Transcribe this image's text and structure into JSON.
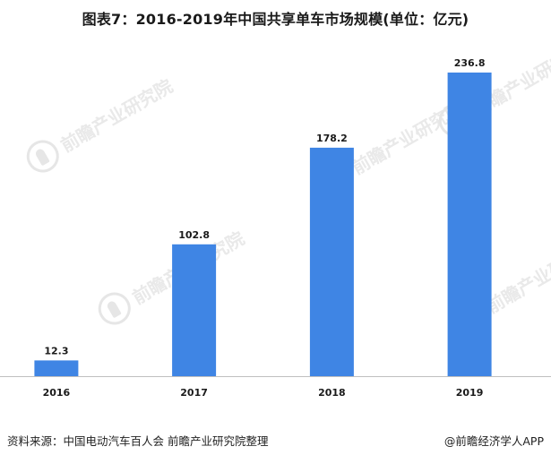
{
  "chart_data": {
    "type": "bar",
    "title": "图表7：2016-2019年中国共享单车市场规模(单位：亿元)",
    "categories": [
      "2016",
      "2017",
      "2018",
      "2019"
    ],
    "values": [
      12.3,
      102.8,
      178.2,
      236.8
    ],
    "value_labels": [
      "12.3",
      "102.8",
      "178.2",
      "236.8"
    ],
    "xlabel": "",
    "ylabel": "",
    "ylim": [
      0,
      236.8
    ],
    "grid": false,
    "legend": "none",
    "bar_color": "#3f85e4",
    "axis_color": "#bfbfbf"
  },
  "watermark": {
    "text": "前瞻产业研究院"
  },
  "footer": {
    "source": "资料来源：中国电动汽车百人会 前瞻产业研究院整理",
    "brand": "@前瞻经济学人APP"
  }
}
